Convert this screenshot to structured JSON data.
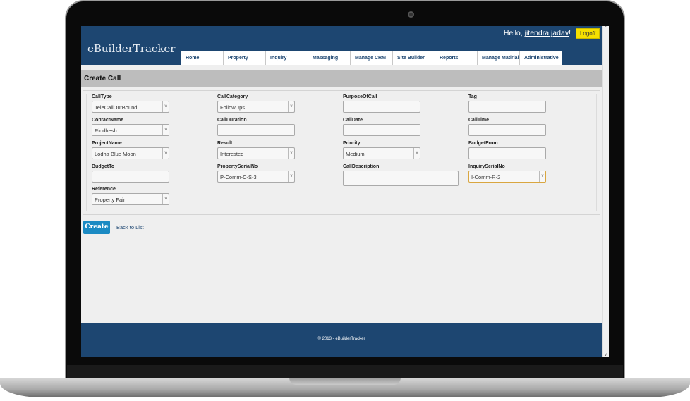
{
  "header": {
    "logo": "eBuilderTracker",
    "greeting": "Hello, ",
    "user": "jitendra.jadav",
    "exclaim": "!",
    "logoff": "Logoff"
  },
  "nav": [
    "Home",
    "Property",
    "Inquiry",
    "Massaging",
    "Manage CRM",
    "Site Builder",
    "Reports",
    "Manage Matirial",
    "Administrative"
  ],
  "page_title": "Create Call",
  "fields": [
    {
      "label": "CallType",
      "value": "TeleCallOutBound",
      "type": "select"
    },
    {
      "label": "CallCategory",
      "value": "FollowUps",
      "type": "select"
    },
    {
      "label": "PurposeOfCall",
      "value": "",
      "type": "input"
    },
    {
      "label": "Tag",
      "value": "",
      "type": "input"
    },
    {
      "label": "ContactName",
      "value": "Riddhesh",
      "type": "select"
    },
    {
      "label": "CallDuration",
      "value": "",
      "type": "input"
    },
    {
      "label": "CallDate",
      "value": "",
      "type": "input"
    },
    {
      "label": "CallTime",
      "value": "",
      "type": "input"
    },
    {
      "label": "ProjectName",
      "value": "Lodha Blue Moon",
      "type": "select"
    },
    {
      "label": "Result",
      "value": "Interested",
      "type": "select"
    },
    {
      "label": "Priority",
      "value": "Medium",
      "type": "select"
    },
    {
      "label": "BudgetFrom",
      "value": "",
      "type": "input"
    },
    {
      "label": "BudgetTo",
      "value": "",
      "type": "input"
    },
    {
      "label": "PropertySerialNo",
      "value": "P-Comm-C-S-3",
      "type": "select"
    },
    {
      "label": "CallDescription",
      "value": "",
      "type": "textarea"
    },
    {
      "label": "InquirySerialNo",
      "value": "I-Comm-R-2",
      "type": "select"
    },
    {
      "label": "Reference",
      "value": "Property Fair",
      "type": "select"
    }
  ],
  "actions": {
    "create": "Create",
    "back": "Back to List"
  },
  "footer": "© 2013 - eBuilderTracker",
  "colors": {
    "header": "#1d4671",
    "logoff": "#f5e000",
    "create": "#1b8ac3"
  }
}
